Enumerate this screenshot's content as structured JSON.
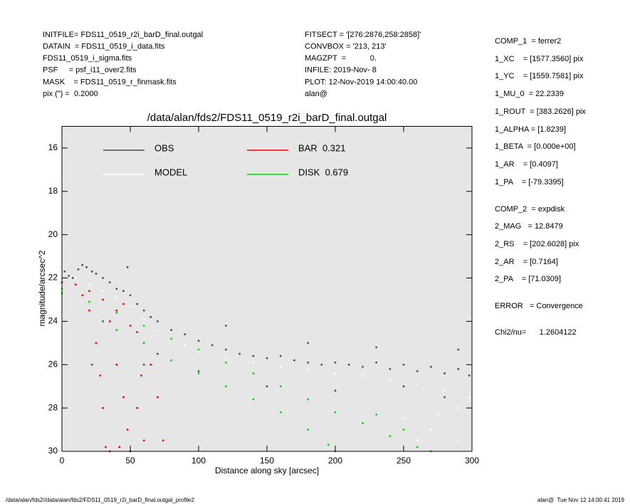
{
  "header": {
    "left": [
      "INITFILE= FDS11_0519_r2i_barD_final.outgal",
      "DATAIN  = FDS11_0519_i_data.fits",
      "FDS11_0519_i_sigma.fits",
      "PSF     = psf_i11_over2.fits",
      "MASK    = FDS11_0519_r_finmask.fits",
      "pix (\") =  0.2000"
    ],
    "middle": [
      "FITSECT = '[276:2876,258:2858]'",
      "CONVBOX = '213, 213'",
      "MAGZPT  =           0.",
      "INFILE: 2019-Nov- 8",
      "PLOT: 12-Nov-2019 14:00:40.00",
      "alan@"
    ],
    "right": [
      "COMP_1  = ferrer2",
      "1_XC    = [1577.3560] pix",
      "1_YC    = [1559.7581] pix",
      "1_MU_0  = 22.2339",
      "1_ROUT  = [383.2626] pix",
      "1_ALPHA = [1.8239]",
      "1_BETA  = [0.000e+00]",
      "1_AR    = [0.4097]",
      "1_PA    = [-79.3395]",
      "COMP_2  = expdisk",
      "2_MAG   = 12.8479",
      "2_RS    = [202.6028] pix",
      "2_AR    = [0.7164]",
      "2_PA    = [71.0309]",
      "ERROR   = Convergence",
      "Chi2/nu=      1.2604122"
    ]
  },
  "footer": {
    "left": "/data/alan/fds2//data/alan/fds2/FDS11_0519_r2i_barD_final.outgal_profile2",
    "right": "alan@  Tue Nov 12 14:00:41 2019"
  },
  "chart_data": {
    "type": "scatter",
    "title": "/data/alan/fds2/FDS11_0519_r2i_barD_final.outgal",
    "x_label": "Distance along sky [arcsec]",
    "y_label": "magnitude/arcsec^2",
    "xlim": [
      0,
      300
    ],
    "ylim": [
      30,
      15
    ],
    "xticks": [
      0,
      50,
      100,
      150,
      200,
      250,
      300
    ],
    "yticks": [
      16,
      18,
      20,
      22,
      24,
      26,
      28,
      30
    ],
    "background": "#e6e6e6",
    "series": [
      {
        "name": "OBS",
        "color": "#4d4d4d",
        "x": [
          2,
          5,
          8,
          12,
          15,
          18,
          22,
          25,
          30,
          35,
          40,
          45,
          50,
          55,
          60,
          65,
          70,
          80,
          90,
          100,
          110,
          120,
          130,
          140,
          150,
          160,
          170,
          180,
          190,
          200,
          210,
          220,
          230,
          240,
          250,
          260,
          270,
          280,
          290,
          298,
          60,
          70,
          100,
          150,
          200,
          250,
          280,
          22,
          30,
          48,
          120,
          180,
          230,
          290
        ],
        "values": [
          21.7,
          21.9,
          22.0,
          21.6,
          21.4,
          21.5,
          21.7,
          21.8,
          22.0,
          22.2,
          22.5,
          22.6,
          22.8,
          23.2,
          23.5,
          23.8,
          24.0,
          24.4,
          24.6,
          24.9,
          25.1,
          25.3,
          25.5,
          25.6,
          25.7,
          25.6,
          25.8,
          25.9,
          26.0,
          25.9,
          26.0,
          26.1,
          25.9,
          26.2,
          26.0,
          26.3,
          26.1,
          26.4,
          26.2,
          26.5,
          26.0,
          25.5,
          26.3,
          27.0,
          27.2,
          27.0,
          27.5,
          26.0,
          24.0,
          21.5,
          24.2,
          25.0,
          25.2,
          25.3
        ]
      },
      {
        "name": "MODEL",
        "color": "#ffffff",
        "x": [
          2,
          10,
          20,
          30,
          40,
          50,
          60,
          70,
          80,
          90,
          100,
          120,
          140,
          160,
          180,
          200,
          220,
          240,
          260,
          280,
          298,
          250,
          270,
          290,
          260,
          290,
          275
        ],
        "values": [
          21.8,
          22.0,
          22.3,
          22.6,
          22.9,
          23.3,
          23.9,
          24.4,
          24.8,
          25.1,
          25.4,
          25.7,
          25.9,
          26.1,
          26.2,
          26.4,
          26.5,
          26.7,
          26.9,
          27.2,
          27.5,
          28.5,
          29.0,
          28.0,
          29.5,
          29.5,
          28.3
        ]
      },
      {
        "name": "BAR  0.321",
        "color": "#ff0000",
        "x": [
          0,
          10,
          20,
          30,
          40,
          50,
          60,
          65,
          70,
          74,
          15,
          20,
          25,
          28,
          30,
          32,
          35,
          40,
          45,
          48,
          50,
          55,
          60,
          35,
          42,
          58,
          45,
          55
        ],
        "values": [
          22.2,
          22.3,
          22.6,
          23.0,
          23.5,
          24.2,
          25.0,
          26.0,
          27.5,
          29.5,
          22.8,
          23.5,
          25.0,
          26.5,
          28.0,
          29.8,
          24.0,
          26.0,
          27.5,
          29.0,
          30.0,
          28.0,
          29.5,
          30.0,
          29.8,
          26.5,
          23.2,
          24.5
        ]
      },
      {
        "name": "DISK  0.679",
        "color": "#00dd00",
        "x": [
          0,
          0,
          20,
          40,
          60,
          80,
          100,
          120,
          140,
          160,
          180,
          200,
          220,
          240,
          260,
          40,
          80,
          120,
          160,
          195,
          200,
          60,
          100,
          140,
          180,
          270,
          250,
          230
        ],
        "values": [
          22.5,
          22.7,
          23.1,
          23.6,
          24.2,
          24.8,
          25.3,
          25.9,
          26.4,
          27.0,
          27.6,
          28.2,
          28.7,
          29.3,
          29.8,
          24.4,
          25.8,
          27.0,
          28.2,
          29.7,
          30.0,
          25.0,
          26.4,
          27.6,
          29.0,
          30.0,
          29.0,
          28.3
        ]
      }
    ]
  }
}
